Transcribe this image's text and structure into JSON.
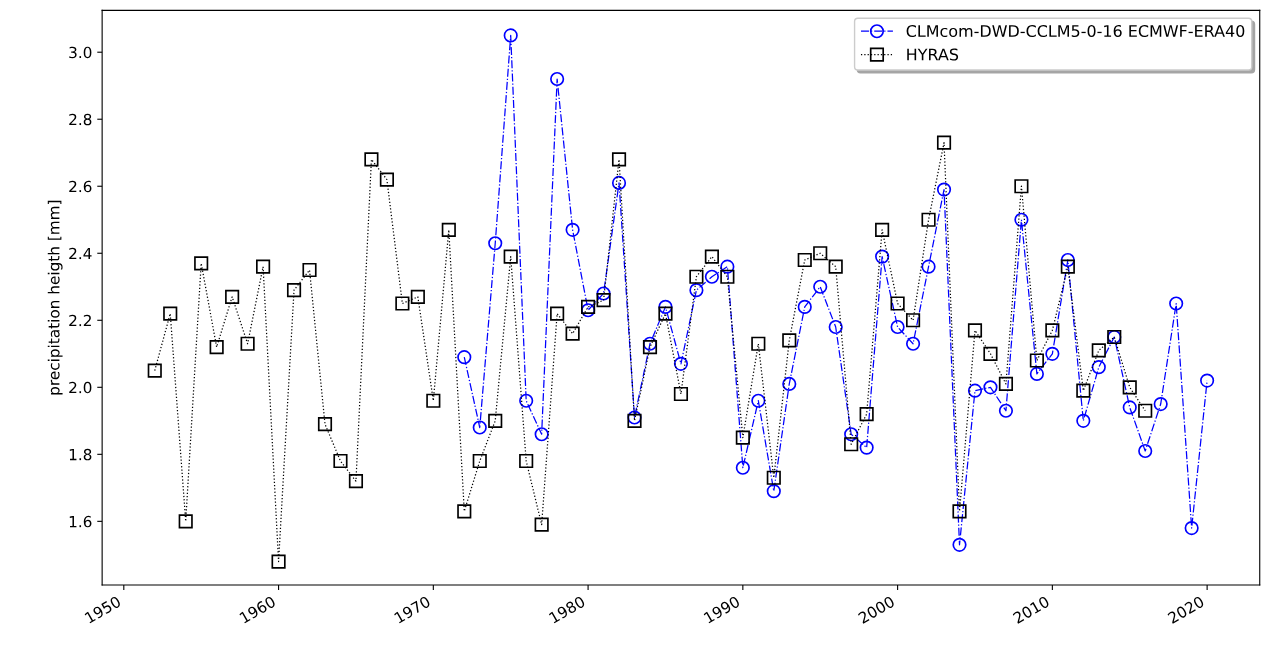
{
  "chart_data": {
    "type": "line",
    "ylabel": "precipitation heigth [mm]",
    "xlim": [
      1948.6,
      2023.4
    ],
    "xticks": [
      1950,
      1960,
      1970,
      1980,
      1990,
      2000,
      2010,
      2020
    ],
    "ylim": [
      1.41,
      3.125
    ],
    "yticks": [
      {
        "value": 1.6,
        "label": "1.6"
      },
      {
        "value": 1.8,
        "label": "1.8"
      },
      {
        "value": 2.0,
        "label": "2.0"
      },
      {
        "value": 2.2,
        "label": "2.2"
      },
      {
        "value": 2.4,
        "label": "2.4"
      },
      {
        "value": 2.6,
        "label": "2.6"
      },
      {
        "value": 2.8,
        "label": "2.8"
      },
      {
        "value": 3.0,
        "label": "3.0"
      }
    ],
    "grid": false,
    "legend": "top right",
    "series": [
      {
        "name": "CLMcom-DWD-CCLM5-0-16 ECMWF-ERA40",
        "color": "#0000ff",
        "marker": "circle",
        "line_style": "dashdot",
        "x": [
          1972,
          1973,
          1974,
          1975,
          1976,
          1977,
          1978,
          1979,
          1980,
          1981,
          1982,
          1983,
          1984,
          1985,
          1986,
          1987,
          1988,
          1989,
          1990,
          1991,
          1992,
          1993,
          1994,
          1995,
          1996,
          1997,
          1998,
          1999,
          2000,
          2001,
          2002,
          2003,
          2004,
          2005,
          2006,
          2007,
          2008,
          2009,
          2010,
          2011,
          2012,
          2013,
          2014,
          2015,
          2016,
          2017,
          2018,
          2019,
          2020
        ],
        "values": [
          2.09,
          1.88,
          2.43,
          3.05,
          1.96,
          1.86,
          2.92,
          2.47,
          2.23,
          2.28,
          2.61,
          1.91,
          2.13,
          2.24,
          2.07,
          2.29,
          2.33,
          2.36,
          1.76,
          1.96,
          1.69,
          2.01,
          2.24,
          2.3,
          2.18,
          1.86,
          1.82,
          2.39,
          2.18,
          2.13,
          2.36,
          2.59,
          1.53,
          1.99,
          2.0,
          1.93,
          2.5,
          2.04,
          2.1,
          2.38,
          1.9,
          2.06,
          2.15,
          1.94,
          1.81,
          1.95,
          2.25,
          1.58,
          2.02
        ]
      },
      {
        "name": "HYRAS",
        "color": "#000000",
        "marker": "square",
        "line_style": "dotted",
        "x": [
          1952,
          1953,
          1954,
          1955,
          1956,
          1957,
          1958,
          1959,
          1960,
          1961,
          1962,
          1963,
          1964,
          1965,
          1966,
          1967,
          1968,
          1969,
          1970,
          1971,
          1972,
          1973,
          1974,
          1975,
          1976,
          1977,
          1978,
          1979,
          1980,
          1981,
          1982,
          1983,
          1984,
          1985,
          1986,
          1987,
          1988,
          1989,
          1990,
          1991,
          1992,
          1993,
          1994,
          1995,
          1996,
          1997,
          1998,
          1999,
          2000,
          2001,
          2002,
          2003,
          2004,
          2005,
          2006,
          2007,
          2008,
          2009,
          2010,
          2011,
          2012,
          2013,
          2014,
          2015,
          2016
        ],
        "values": [
          2.05,
          2.22,
          1.6,
          2.37,
          2.12,
          2.27,
          2.13,
          2.36,
          1.48,
          2.29,
          2.35,
          1.89,
          1.78,
          1.72,
          2.68,
          2.62,
          2.25,
          2.27,
          1.96,
          2.47,
          1.63,
          1.78,
          1.9,
          2.39,
          1.78,
          1.59,
          2.22,
          2.16,
          2.24,
          2.26,
          2.68,
          1.9,
          2.12,
          2.22,
          1.98,
          2.33,
          2.39,
          2.33,
          1.85,
          2.13,
          1.73,
          2.14,
          2.38,
          2.4,
          2.36,
          1.83,
          1.92,
          2.47,
          2.25,
          2.2,
          2.5,
          2.73,
          1.63,
          2.17,
          2.1,
          2.01,
          2.6,
          2.08,
          2.17,
          2.36,
          1.99,
          2.11,
          2.15,
          2.0,
          1.93
        ]
      }
    ]
  }
}
